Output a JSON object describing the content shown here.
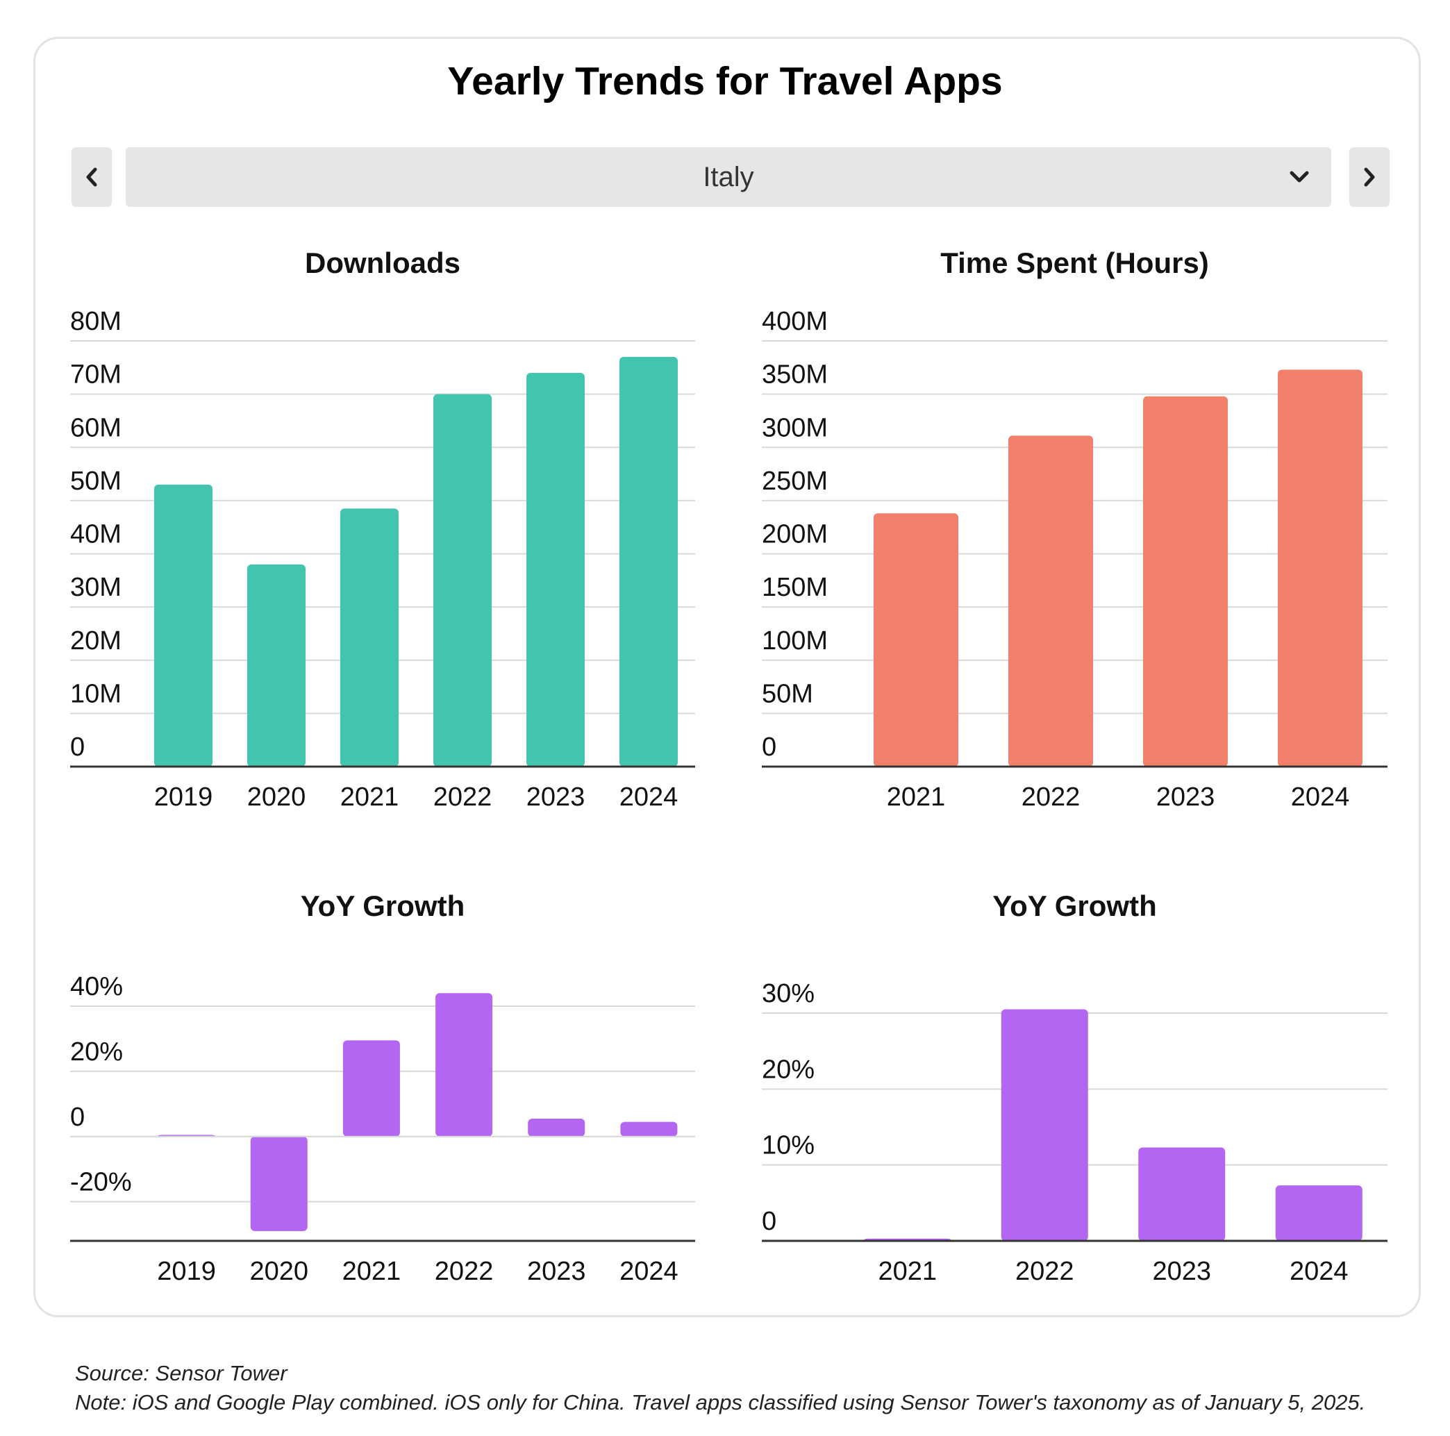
{
  "title": "Yearly Trends for Travel Apps",
  "selector": {
    "value": "Italy",
    "prev_icon": "chevron-left-icon",
    "next_icon": "chevron-right-icon",
    "dropdown_icon": "chevron-down-icon"
  },
  "chart_data": [
    {
      "type": "bar",
      "title": "Downloads",
      "categories": [
        "2019",
        "2020",
        "2021",
        "2022",
        "2023",
        "2024"
      ],
      "values": [
        53,
        38,
        48.5,
        70,
        74,
        77
      ],
      "unit": "M",
      "ylim": [
        0,
        80
      ],
      "yticks": [
        "0",
        "10M",
        "20M",
        "30M",
        "40M",
        "50M",
        "60M",
        "70M",
        "80M"
      ],
      "color": "#43c4ae",
      "grid": true
    },
    {
      "type": "bar",
      "title": "Time Spent (Hours)",
      "categories": [
        "2021",
        "2022",
        "2023",
        "2024"
      ],
      "values": [
        238,
        311,
        348,
        373
      ],
      "unit": "M",
      "ylim": [
        0,
        400
      ],
      "yticks": [
        "0",
        "50M",
        "100M",
        "150M",
        "200M",
        "250M",
        "300M",
        "350M",
        "400M"
      ],
      "color": "#f2806a",
      "grid": true
    },
    {
      "type": "bar",
      "title": "YoY Growth",
      "categories": [
        "2019",
        "2020",
        "2021",
        "2022",
        "2023",
        "2024"
      ],
      "values": [
        0.5,
        -29,
        29.5,
        44,
        5.5,
        4.5
      ],
      "unit": "%",
      "ylim": [
        -32,
        40
      ],
      "yticks": [
        "-20%",
        "0",
        "20%",
        "40%"
      ],
      "color": "#b366f2",
      "grid": true
    },
    {
      "type": "bar",
      "title": "YoY Growth",
      "categories": [
        "2021",
        "2022",
        "2023",
        "2024"
      ],
      "values": [
        0.3,
        30.5,
        12.3,
        7.3
      ],
      "unit": "%",
      "ylim": [
        0,
        30
      ],
      "yticks": [
        "0",
        "10%",
        "20%",
        "30%"
      ],
      "color": "#b366f2",
      "grid": true
    }
  ],
  "footer": {
    "source": "Source: Sensor Tower",
    "note": "Note: iOS and Google Play combined. iOS only for China. Travel apps classified using Sensor Tower's taxonomy as of January 5, 2025."
  }
}
